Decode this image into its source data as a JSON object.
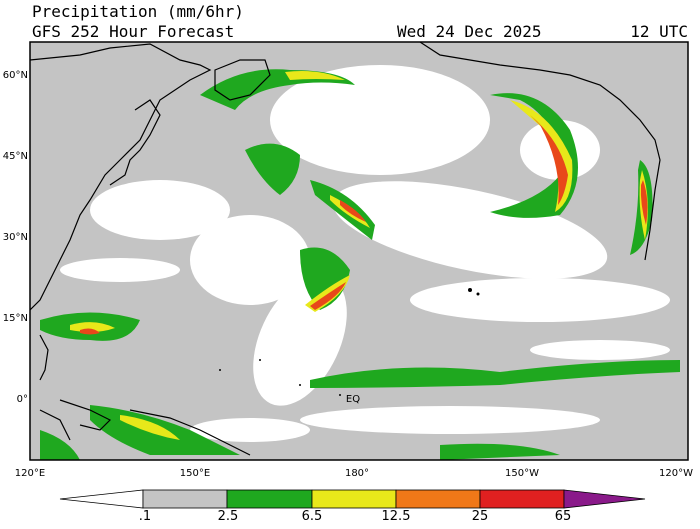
{
  "header": {
    "title": "Precipitation (mm/6hr)",
    "subtitle": "GFS 252 Hour Forecast",
    "date": "Wed 24 Dec 2025",
    "time": "12 UTC"
  },
  "map": {
    "lat_labels": [
      "60°N",
      "45°N",
      "30°N",
      "15°N",
      "0°"
    ],
    "lon_labels": [
      "120°E",
      "150°E",
      "180°",
      "150°W",
      "120°W"
    ],
    "equator_label": "EQ"
  },
  "colorbar": {
    "labels": [
      ".1",
      "2.5",
      "6.5",
      "12.5",
      "25",
      "65"
    ]
  }
}
